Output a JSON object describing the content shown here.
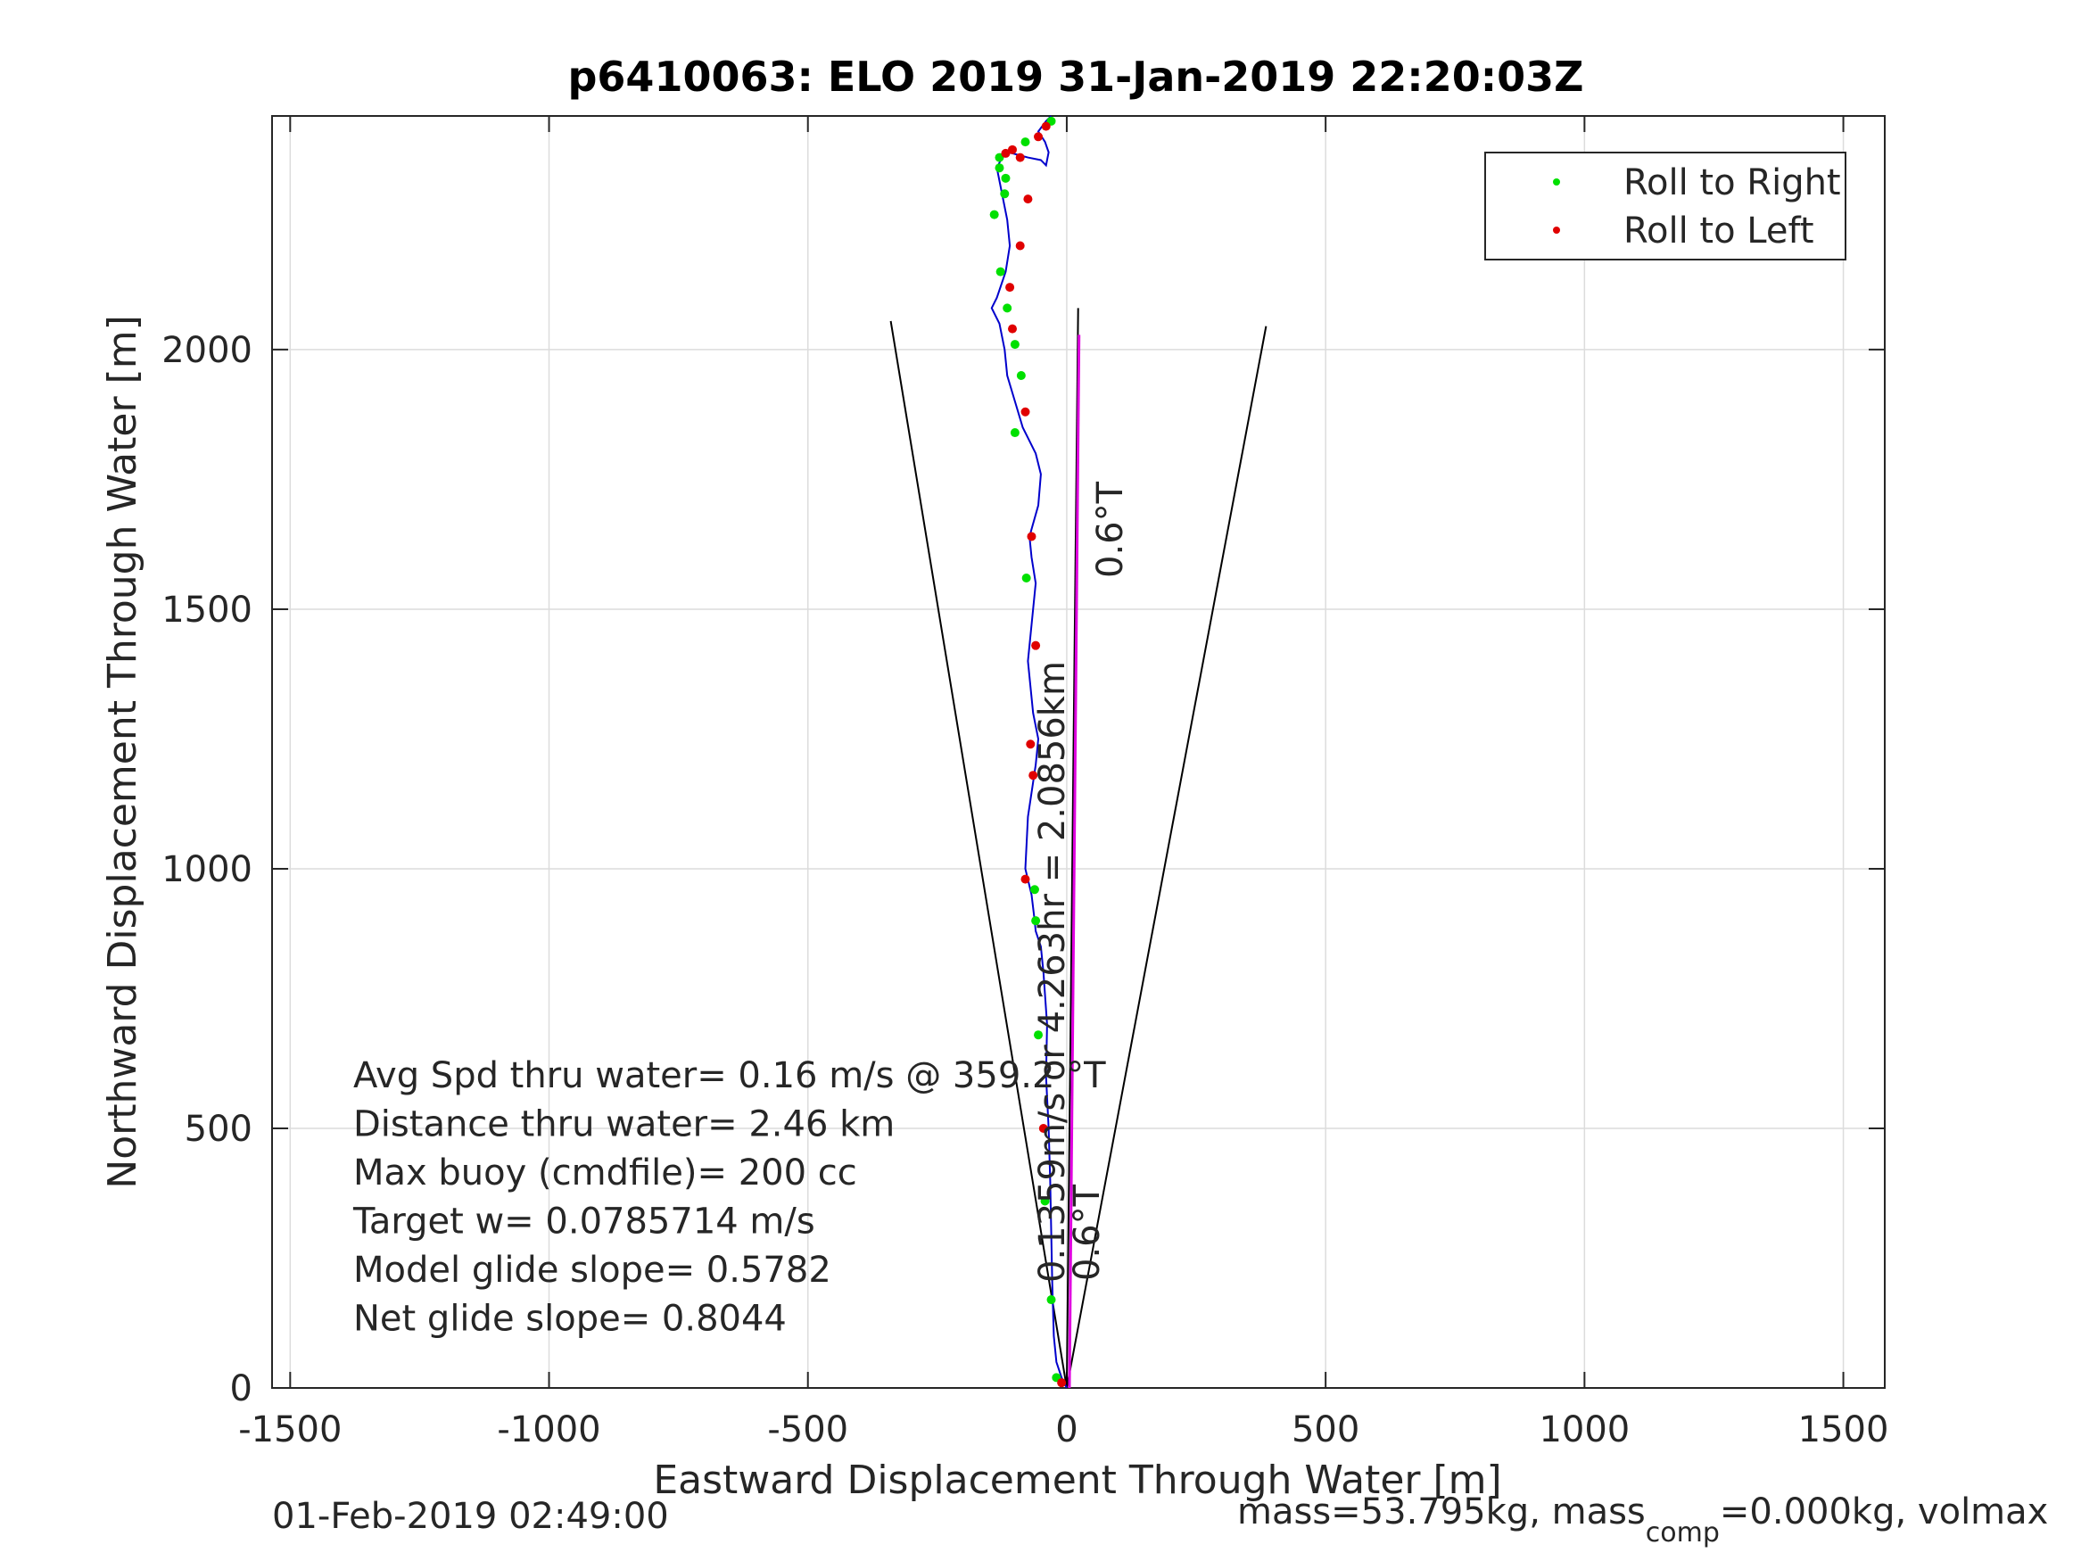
{
  "chart_data": {
    "type": "scatter",
    "title": "p6410063: ELO 2019 31-Jan-2019 22:20:03Z",
    "xlabel": "Eastward Displacement Through Water [m]",
    "ylabel": "Northward Displacement Through Water [m]",
    "xlim": [
      -1535,
      1580
    ],
    "ylim": [
      0,
      2450
    ],
    "xticks": [
      -1500,
      -1000,
      -500,
      0,
      500,
      1000,
      1500
    ],
    "xtick_labels": [
      "-1500",
      "-1000",
      "-500",
      "0",
      "500",
      "1000",
      "1500"
    ],
    "yticks": [
      0,
      500,
      1000,
      1500,
      2000
    ],
    "ytick_labels": [
      "0",
      "500",
      "1000",
      "1500",
      "2000"
    ],
    "grid": true,
    "legend_position": "top-right",
    "legend": [
      {
        "label": "Roll to Right",
        "color": "#00e000"
      },
      {
        "label": "Roll to Left",
        "color": "#e00000"
      }
    ],
    "colors": {
      "track": "#0000cc",
      "heading": "#e000e0",
      "cone": "#000000",
      "right": "#00e000",
      "left": "#e00000"
    },
    "track": {
      "x": [
        0,
        -10,
        -20,
        -25,
        -28,
        -30,
        -32,
        -35,
        -40,
        -38,
        -45,
        -50,
        -60,
        -62,
        -68,
        -80,
        -75,
        -60,
        -55,
        -65,
        -75,
        -70,
        -60,
        -68,
        -72,
        -55,
        -50,
        -60,
        -75,
        -85,
        -100,
        -115,
        -120,
        -130,
        -145,
        -135,
        -118,
        -110,
        -115,
        -125,
        -135,
        -125,
        -115,
        -105,
        -75,
        -50,
        -40,
        -35,
        -42,
        -55,
        -40,
        -30
      ],
      "y": [
        0,
        20,
        50,
        100,
        200,
        300,
        400,
        500,
        600,
        700,
        800,
        850,
        880,
        900,
        950,
        1000,
        1100,
        1200,
        1250,
        1300,
        1400,
        1450,
        1550,
        1600,
        1640,
        1700,
        1760,
        1800,
        1830,
        1850,
        1900,
        1950,
        2000,
        2050,
        2080,
        2100,
        2150,
        2200,
        2250,
        2300,
        2350,
        2370,
        2380,
        2378,
        2370,
        2365,
        2355,
        2380,
        2400,
        2420,
        2440,
        2450
      ]
    },
    "heading_line": {
      "label": "0.6°T",
      "x": [
        0,
        22
      ],
      "y": [
        0,
        2080
      ]
    },
    "cone_lines": [
      {
        "x": [
          0,
          -340
        ],
        "y": [
          0,
          2055
        ]
      },
      {
        "x": [
          0,
          385
        ],
        "y": [
          0,
          2045
        ]
      }
    ],
    "roll_right_points": {
      "x": [
        -20,
        -30,
        -42,
        -55,
        -60,
        -62,
        -78,
        -100,
        -88,
        -100,
        -115,
        -128,
        -140,
        -120,
        -118,
        -130,
        -130,
        -80,
        -30
      ],
      "y": [
        20,
        170,
        360,
        680,
        900,
        960,
        1560,
        1840,
        1950,
        2010,
        2080,
        2150,
        2260,
        2300,
        2330,
        2350,
        2370,
        2400,
        2440
      ]
    },
    "roll_left_points": {
      "x": [
        -10,
        -45,
        -65,
        -70,
        -80,
        -60,
        -68,
        -80,
        -105,
        -110,
        -90,
        -75,
        -105,
        -118,
        -90,
        -55,
        -40
      ],
      "y": [
        10,
        500,
        1180,
        1240,
        980,
        1430,
        1640,
        1880,
        2040,
        2120,
        2200,
        2290,
        2385,
        2378,
        2370,
        2410,
        2430
      ]
    },
    "annotations": {
      "heading_top": "0.6°T",
      "heading_bottom": "0.6°T",
      "speed_line": "0.1359m/s or 4.263hr = 2.0856km",
      "stats": [
        "Avg Spd thru water=  0.16 m/s @ 359.2 °T",
        "Distance thru water=  2.46 km",
        "Max buoy (cmdfile)= 200 cc",
        "Target w= 0.0785714 m/s",
        "Model glide slope= 0.5782",
        "Net glide slope= 0.8044"
      ]
    },
    "footer": {
      "timestamp": "01-Feb-2019 02:49:00",
      "mass_text": "mass=53.795kg, mass",
      "mass_sub": "comp",
      "mass_tail": "=0.000kg, volmax"
    }
  }
}
